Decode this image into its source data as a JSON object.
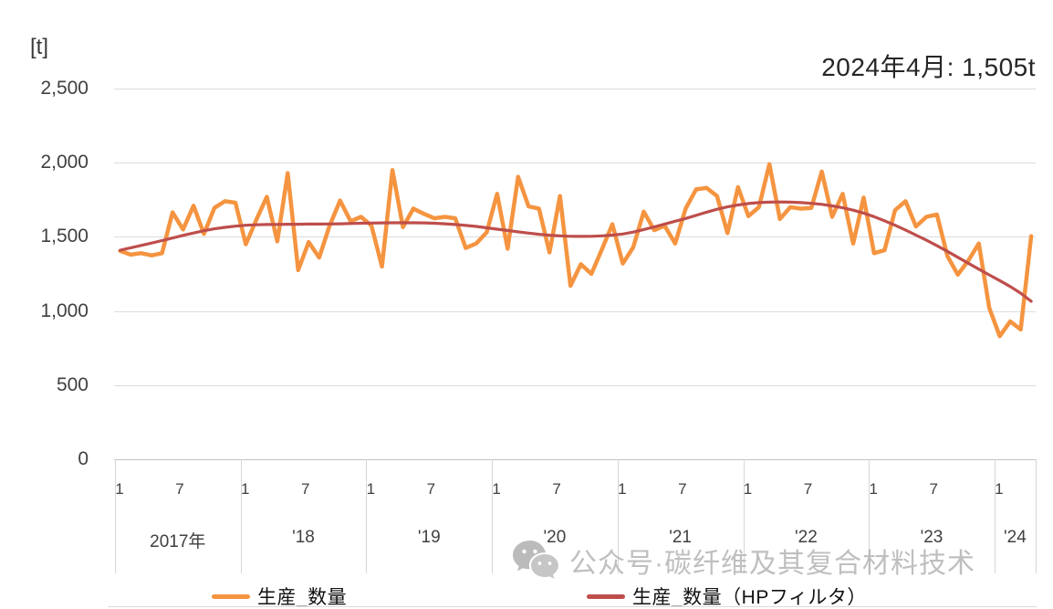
{
  "annotation": {
    "text": "2024年4月: 1,505t"
  },
  "y_axis": {
    "unit": "[t]",
    "ticks": [
      {
        "label": "0",
        "value": 0
      },
      {
        "label": "500",
        "value": 500
      },
      {
        "label": "1,000",
        "value": 1000
      },
      {
        "label": "1,500",
        "value": 1500
      },
      {
        "label": "2,000",
        "value": 2000
      },
      {
        "label": "2,500",
        "value": 2500
      }
    ]
  },
  "x_axis": {
    "years": [
      {
        "label": "2017年",
        "months": [
          "1",
          "7"
        ]
      },
      {
        "label": "'18",
        "months": [
          "1",
          "7"
        ]
      },
      {
        "label": "'19",
        "months": [
          "1",
          "7"
        ]
      },
      {
        "label": "'20",
        "months": [
          "1",
          "7"
        ]
      },
      {
        "label": "'21",
        "months": [
          "1",
          "7"
        ]
      },
      {
        "label": "'22",
        "months": [
          "1",
          "7"
        ]
      },
      {
        "label": "'23",
        "months": [
          "1",
          "7"
        ]
      },
      {
        "label": "'24",
        "months": [
          "1"
        ]
      }
    ]
  },
  "legend": [
    {
      "label": "生産_数量",
      "color": "#F59440"
    },
    {
      "label": "生産_数量（HPフィルタ）",
      "color": "#BE4E4B"
    }
  ],
  "watermark": {
    "icon": "wechat-icon",
    "text": "公众号·碳纤维及其复合材料技术"
  },
  "chart_data": {
    "type": "line",
    "title": "",
    "xlabel": "",
    "ylabel": "[t]",
    "ylim": [
      0,
      2500
    ],
    "grid": "horizontal",
    "legend_position": "bottom",
    "x_frequency": "monthly",
    "x_start": "2017-01",
    "x_end": "2024-04",
    "annotation": "2024年4月: 1,505t",
    "series": [
      {
        "name": "生産_数量",
        "color": "#F59440",
        "width": 4.5,
        "values": [
          1405,
          1380,
          1390,
          1375,
          1390,
          1665,
          1550,
          1710,
          1520,
          1695,
          1740,
          1730,
          1450,
          1615,
          1770,
          1470,
          1930,
          1275,
          1465,
          1360,
          1575,
          1745,
          1605,
          1635,
          1575,
          1300,
          1950,
          1565,
          1690,
          1655,
          1625,
          1635,
          1625,
          1425,
          1455,
          1530,
          1790,
          1420,
          1905,
          1705,
          1690,
          1395,
          1775,
          1170,
          1315,
          1250,
          1415,
          1585,
          1320,
          1430,
          1670,
          1545,
          1575,
          1455,
          1690,
          1820,
          1830,
          1775,
          1525,
          1835,
          1640,
          1700,
          1990,
          1620,
          1700,
          1690,
          1695,
          1940,
          1635,
          1790,
          1455,
          1765,
          1390,
          1410,
          1680,
          1740,
          1570,
          1635,
          1650,
          1370,
          1245,
          1340,
          1455,
          1020,
          830,
          930,
          875,
          1505
        ]
      },
      {
        "name": "生産_数量（HPフィルタ）",
        "color": "#BE4E4B",
        "width": 3.2,
        "values": [
          1410,
          1426,
          1442,
          1458,
          1475,
          1492,
          1510,
          1526,
          1541,
          1554,
          1564,
          1572,
          1578,
          1581,
          1583,
          1584,
          1585,
          1585,
          1586,
          1586,
          1587,
          1588,
          1590,
          1592,
          1593,
          1594,
          1595,
          1595,
          1595,
          1594,
          1592,
          1588,
          1583,
          1577,
          1570,
          1561,
          1552,
          1543,
          1534,
          1525,
          1517,
          1511,
          1507,
          1504,
          1503,
          1504,
          1507,
          1512,
          1519,
          1532,
          1549,
          1567,
          1586,
          1605,
          1624,
          1645,
          1666,
          1686,
          1702,
          1715,
          1725,
          1731,
          1734,
          1735,
          1734,
          1731,
          1726,
          1719,
          1709,
          1696,
          1680,
          1660,
          1636,
          1608,
          1578,
          1546,
          1512,
          1477,
          1440,
          1402,
          1362,
          1322,
          1282,
          1243,
          1205,
          1165,
          1120,
          1065
        ]
      }
    ]
  }
}
